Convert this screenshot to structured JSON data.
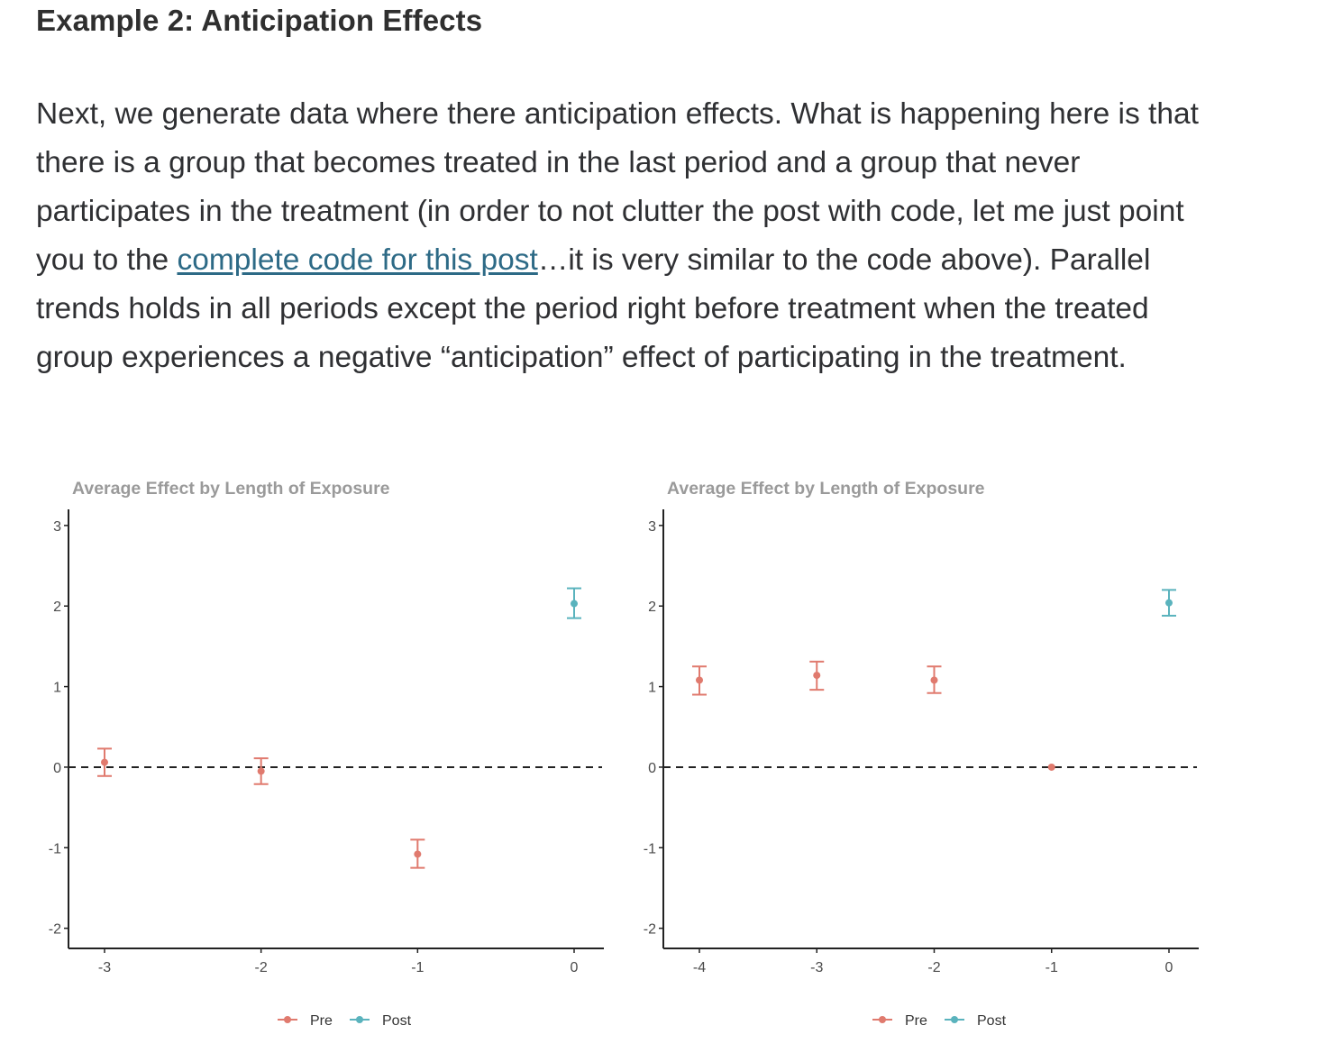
{
  "heading": "Example 2: Anticipation Effects",
  "paragraph": {
    "before_link": "Next, we generate data where there anticipation effects. What is happening here is that there is a group that becomes treated in the last period and a group that never participates in the treatment (in order to not clutter the post with code, let me just point you to the ",
    "link_text": "complete code for this post",
    "after_link": "…it is very similar to the code above). Parallel trends holds in all periods except the period right before treatment when the treated group experiences a negative “anticipation” effect of participating in the treatment."
  },
  "colors": {
    "pre": "#e07a6e",
    "post": "#5ab3bd",
    "link": "#2d6a86",
    "title": "#9a9a9a"
  },
  "chart_data": [
    {
      "type": "scatter",
      "title": "Average Effect by Length of Exposure",
      "xlabel": "",
      "ylabel": "",
      "x_categories": [
        "-3",
        "-2",
        "-1",
        "0"
      ],
      "ylim": [
        -2.25,
        3.2
      ],
      "yticks": [
        -2,
        -1,
        0,
        1,
        2,
        3
      ],
      "reference_line": {
        "y": 0,
        "style": "dashed"
      },
      "legend": {
        "placement": "bottom",
        "entries": [
          "Pre",
          "Post"
        ]
      },
      "points": [
        {
          "x": "-3",
          "y": 0.06,
          "lower": -0.11,
          "upper": 0.23,
          "series": "Pre"
        },
        {
          "x": "-2",
          "y": -0.05,
          "lower": -0.21,
          "upper": 0.11,
          "series": "Pre"
        },
        {
          "x": "-1",
          "y": -1.08,
          "lower": -1.25,
          "upper": -0.9,
          "series": "Pre"
        },
        {
          "x": "0",
          "y": 2.03,
          "lower": 1.85,
          "upper": 2.22,
          "series": "Post"
        }
      ]
    },
    {
      "type": "scatter",
      "title": "Average Effect by Length of Exposure",
      "xlabel": "",
      "ylabel": "",
      "x_categories": [
        "-4",
        "-3",
        "-2",
        "-1",
        "0"
      ],
      "ylim": [
        -2.25,
        3.2
      ],
      "yticks": [
        -2,
        -1,
        0,
        1,
        2,
        3
      ],
      "reference_line": {
        "y": 0,
        "style": "dashed"
      },
      "legend": {
        "placement": "bottom",
        "entries": [
          "Pre",
          "Post"
        ]
      },
      "points": [
        {
          "x": "-4",
          "y": 1.08,
          "lower": 0.9,
          "upper": 1.25,
          "series": "Pre"
        },
        {
          "x": "-3",
          "y": 1.14,
          "lower": 0.96,
          "upper": 1.31,
          "series": "Pre"
        },
        {
          "x": "-2",
          "y": 1.08,
          "lower": 0.92,
          "upper": 1.25,
          "series": "Pre"
        },
        {
          "x": "-1",
          "y": 0.0,
          "lower": 0.0,
          "upper": 0.0,
          "series": "Pre"
        },
        {
          "x": "0",
          "y": 2.04,
          "lower": 1.88,
          "upper": 2.2,
          "series": "Post"
        }
      ]
    }
  ]
}
